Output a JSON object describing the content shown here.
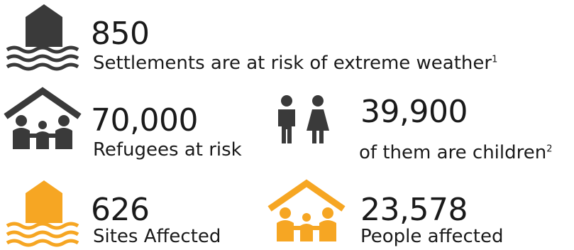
{
  "colors": {
    "dark": "#3a3a3a",
    "accent": "#f6a623",
    "text": "#1a1a1a"
  },
  "stats": [
    {
      "value": "850",
      "label": "Settlements are at risk of extreme weather",
      "footnote": "1",
      "icon": "flooded-house-icon",
      "color": "dark"
    },
    {
      "value": "70,000",
      "label": "Refugees at risk",
      "icon": "family-shelter-icon",
      "color": "dark"
    },
    {
      "value": "39,900",
      "label": "of them are children",
      "footnote": "2",
      "icon": "children-icon",
      "color": "dark"
    },
    {
      "value": "626",
      "label": "Sites Affected",
      "icon": "flooded-house-icon",
      "color": "accent"
    },
    {
      "value": "23,578",
      "label": "People affected",
      "icon": "family-shelter-icon",
      "color": "accent"
    }
  ]
}
